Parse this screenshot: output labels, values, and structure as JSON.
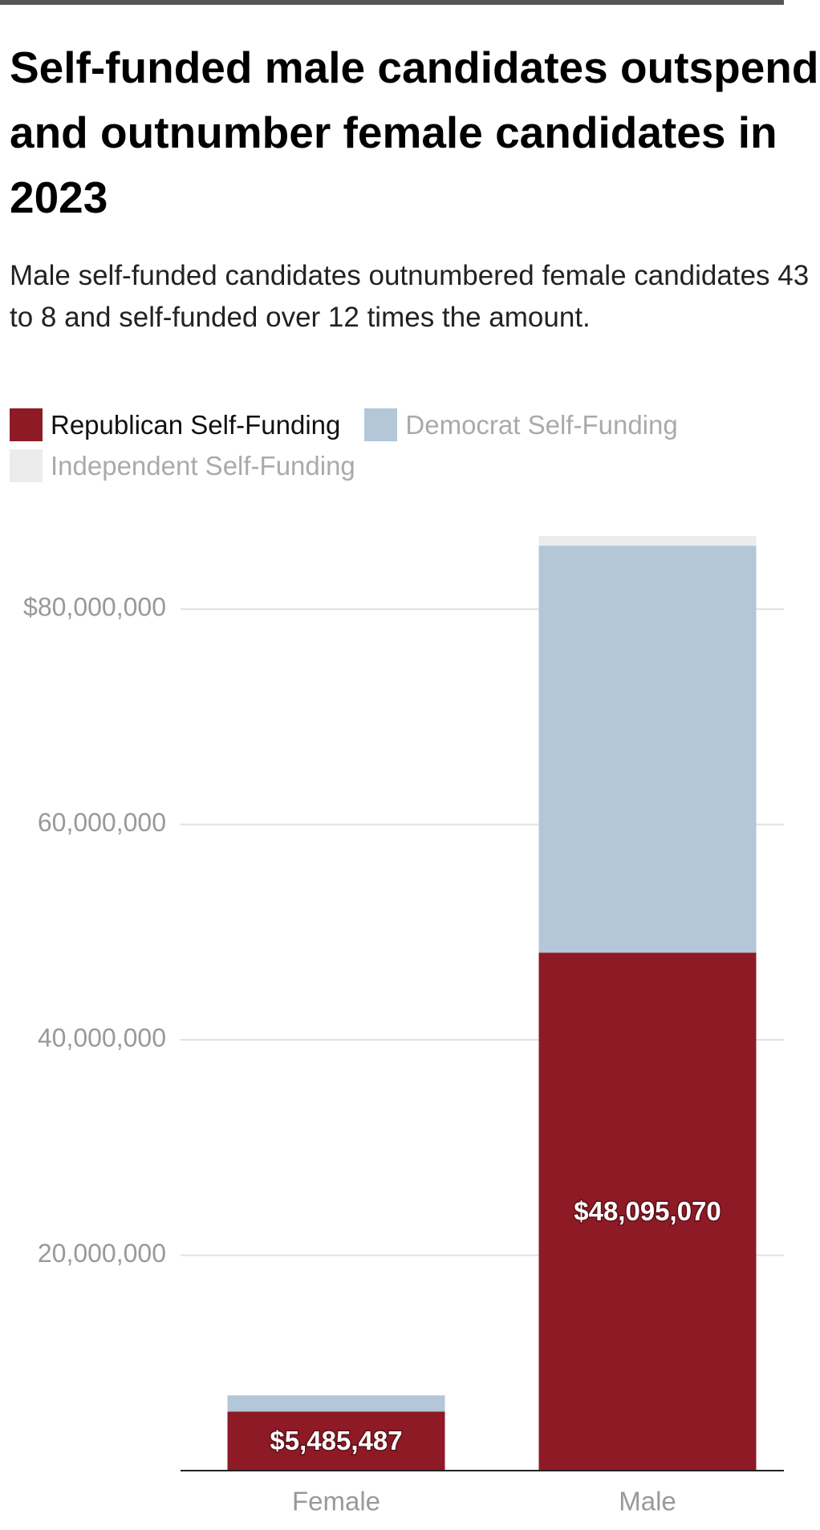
{
  "chart_data": {
    "type": "stacked-bar",
    "title": "Self-funded male candidates outspend and outnumber female candidates in 2023",
    "subtitle": "Male self-funded candidates outnumbered female candidates 43 to 8 and self-funded over 12 times the amount.",
    "categories": [
      "Female",
      "Male"
    ],
    "series": [
      {
        "name": "Republican Self-Funding",
        "color": "#8e1a26",
        "values": [
          5485487,
          48095070
        ],
        "value_labels": [
          "$5,485,487",
          "$48,095,070"
        ]
      },
      {
        "name": "Democrat Self-Funding",
        "color": "#b3c7d8",
        "values": [
          1500000,
          37800000
        ]
      },
      {
        "name": "Independent Self-Funding",
        "color": "#ececec",
        "values": [
          0,
          900000
        ]
      }
    ],
    "ylim": [
      0,
      90000000
    ],
    "yticks": [
      {
        "value": 20000000,
        "label": "20,000,000"
      },
      {
        "value": 40000000,
        "label": "40,000,000"
      },
      {
        "value": 60000000,
        "label": "60,000,000"
      },
      {
        "value": 80000000,
        "label": "$80,000,000"
      }
    ],
    "grid": true
  }
}
